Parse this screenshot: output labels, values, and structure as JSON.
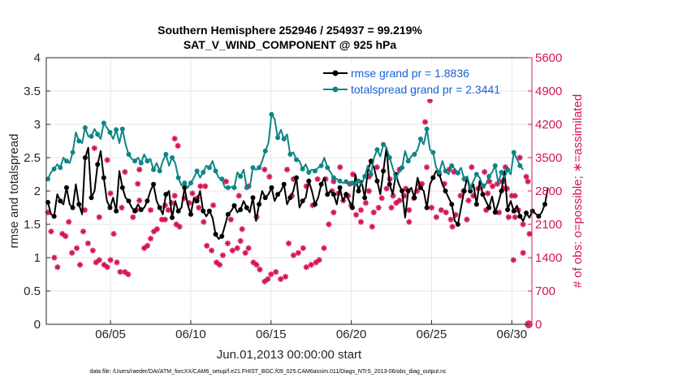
{
  "chart_data": {
    "type": "line",
    "title_line1": "Southern Hemisphere 252946 / 254937 = 99.219%",
    "title_line2": "SAT_V_WIND_COMPONENT @ 925 hPa",
    "xlabel": "Jun.01,2013 00:00:00 start",
    "ylabel_left": "rmse and totalspread",
    "ylabel_right": "# of obs: o=possible; ∗=assimilated",
    "x_range": [
      1.0,
      31.25
    ],
    "x_ticks": [
      5,
      10,
      15,
      20,
      25,
      30
    ],
    "x_tick_labels": [
      "06/05",
      "06/10",
      "06/15",
      "06/20",
      "06/25",
      "06/30"
    ],
    "ylim_left": [
      0,
      4
    ],
    "y_ticks_left": [
      "0",
      "0.5",
      "1",
      "1.5",
      "2",
      "2.5",
      "3",
      "3.5",
      "4"
    ],
    "ylim_right": [
      0,
      5600
    ],
    "y_ticks_right": [
      "0",
      "700",
      "1400",
      "2100",
      "2800",
      "3500",
      "4200",
      "4900",
      "5600"
    ],
    "grid": true,
    "legend_position": "top-right",
    "series": [
      {
        "name": "rmse grand pr = 1.8836",
        "color": "#000000",
        "axis": "left",
        "marker": "circle",
        "values": [
          1.83,
          1.65,
          1.62,
          1.95,
          1.85,
          1.8,
          2.05,
          1.8,
          1.75,
          2.1,
          1.8,
          1.65,
          2.5,
          2.65,
          1.9,
          2.0,
          2.4,
          2.6,
          2.2,
          1.85,
          1.75,
          1.9,
          1.7,
          2.3,
          2.05,
          1.9,
          1.85,
          1.75,
          1.7,
          1.8,
          1.72,
          1.75,
          1.85,
          2.0,
          2.1,
          1.85,
          1.75,
          1.65,
          1.95,
          2.0,
          1.6,
          1.85,
          1.7,
          1.75,
          2.05,
          1.8,
          1.65,
          1.9,
          1.85,
          2.0,
          1.7,
          1.62,
          1.7,
          1.6,
          1.35,
          1.28,
          1.32,
          1.48,
          1.65,
          1.7,
          1.78,
          1.68,
          1.72,
          1.85,
          1.75,
          1.68,
          1.9,
          1.55,
          1.8,
          2.0,
          1.9,
          1.95,
          2.05,
          1.85,
          1.95,
          2.0,
          2.1,
          1.8,
          1.9,
          2.0,
          2.2,
          1.75,
          1.85,
          1.9,
          2.15,
          2.0,
          1.8,
          1.9,
          2.1,
          2.2,
          1.95,
          2.0,
          1.95,
          1.8,
          2.05,
          1.85,
          1.95,
          1.85,
          1.75,
          2.25,
          2.0,
          2.15,
          1.9,
          2.3,
          2.45,
          2.35,
          2.15,
          1.95,
          2.3,
          2.65,
          2.1,
          1.95,
          2.25,
          2.1,
          2.0,
          1.6,
          2.0,
          2.05,
          1.9,
          2.2,
          2.05,
          2.0,
          1.75,
          2.1,
          2.2,
          2.3,
          2.25,
          2.1,
          2.0,
          1.9,
          1.8,
          1.55,
          1.5,
          1.75,
          2.0,
          2.2,
          2.0,
          2.1,
          1.8,
          2.15,
          1.95,
          1.85,
          1.75,
          1.92,
          1.68,
          1.82,
          2.0,
          2.3,
          1.72,
          1.85,
          1.7,
          1.78,
          1.62,
          1.55,
          1.67,
          1.6,
          1.7,
          1.66,
          1.62,
          1.68,
          1.8,
          2.05
        ],
        "markers_every": 2
      },
      {
        "name": "totalspread grand pr = 2.3441",
        "color": "#0e8585",
        "axis": "left",
        "marker": "circle",
        "values": [
          2.18,
          2.28,
          2.33,
          2.4,
          2.35,
          2.5,
          2.45,
          2.42,
          2.58,
          2.88,
          2.75,
          2.72,
          2.95,
          2.82,
          2.82,
          2.93,
          2.85,
          2.78,
          3.02,
          2.95,
          2.88,
          2.78,
          2.92,
          2.72,
          2.93,
          2.7,
          2.55,
          2.48,
          2.45,
          2.5,
          2.42,
          2.55,
          2.45,
          2.48,
          2.32,
          2.42,
          2.3,
          2.45,
          2.55,
          2.38,
          2.5,
          2.42,
          2.2,
          2.08,
          2.12,
          2.05,
          2.12,
          2.2,
          2.3,
          2.2,
          2.28,
          2.38,
          2.35,
          2.45,
          2.3,
          2.2,
          2.18,
          2.05,
          2.05,
          2.06,
          2.05,
          2.28,
          2.22,
          2.32,
          2.05,
          2.05,
          2.35,
          2.32,
          2.35,
          2.45,
          2.6,
          2.72,
          3.15,
          3.08,
          2.8,
          2.92,
          2.78,
          2.85,
          2.55,
          2.58,
          2.47,
          2.45,
          2.33,
          2.4,
          2.28,
          2.32,
          2.3,
          2.35,
          2.38,
          2.5,
          2.35,
          2.28,
          2.2,
          2.18,
          2.15,
          2.12,
          2.14,
          2.1,
          2.12,
          2.08,
          2.15,
          2.1,
          2.22,
          2.38,
          2.25,
          2.5,
          2.62,
          2.52,
          2.7,
          2.65,
          2.5,
          2.35,
          2.2,
          2.28,
          2.35,
          2.6,
          2.45,
          2.52,
          2.55,
          2.62,
          2.78,
          2.7,
          2.93,
          2.62,
          2.58,
          2.35,
          2.28,
          2.45,
          2.3,
          2.25,
          2.38,
          2.33,
          2.27,
          2.35,
          2.18,
          2.22,
          2.05,
          2.15,
          2.25,
          2.2,
          2.08,
          2.1,
          2.22,
          2.28,
          2.38,
          2.12,
          2.28,
          2.2,
          2.32,
          2.25,
          2.58,
          2.48,
          2.38,
          2.32
        ],
        "markers_every": 2
      }
    ],
    "scatter_series": [
      {
        "name": "assimilated",
        "color": "#d4145a",
        "axis": "right",
        "marker": "asterisk",
        "points": [
          [
            1.1,
            2350
          ],
          [
            1.3,
            1950
          ],
          [
            1.5,
            1400
          ],
          [
            1.7,
            1200
          ],
          [
            2.0,
            1900
          ],
          [
            2.2,
            1850
          ],
          [
            2.4,
            2150
          ],
          [
            2.6,
            1500
          ],
          [
            2.9,
            1600
          ],
          [
            3.1,
            1250
          ],
          [
            3.4,
            2400
          ],
          [
            3.6,
            1700
          ],
          [
            3.9,
            1550
          ],
          [
            4.1,
            1300
          ],
          [
            4.3,
            1350
          ],
          [
            4.6,
            1250
          ],
          [
            4.8,
            1200
          ],
          [
            5.0,
            1350
          ],
          [
            5.2,
            1900
          ],
          [
            5.4,
            1300
          ],
          [
            5.6,
            1100
          ],
          [
            5.9,
            1100
          ],
          [
            6.1,
            1050
          ],
          [
            5.7,
            2450
          ],
          [
            6.4,
            2250
          ],
          [
            6.6,
            2400
          ],
          [
            6.8,
            2600
          ],
          [
            7.1,
            1600
          ],
          [
            7.3,
            1650
          ],
          [
            7.5,
            1800
          ],
          [
            7.7,
            1950
          ],
          [
            7.9,
            2000
          ],
          [
            8.2,
            2200
          ],
          [
            8.4,
            2500
          ],
          [
            8.6,
            2400
          ],
          [
            8.8,
            2550
          ],
          [
            9.1,
            2100
          ],
          [
            9.3,
            2050
          ],
          [
            9.6,
            2650
          ],
          [
            9.9,
            2550
          ],
          [
            10.1,
            2750
          ],
          [
            10.3,
            2600
          ],
          [
            10.5,
            2450
          ],
          [
            10.8,
            2150
          ],
          [
            11.0,
            1650
          ],
          [
            11.3,
            1550
          ],
          [
            11.6,
            1300
          ],
          [
            11.8,
            1250
          ],
          [
            12.0,
            1450
          ],
          [
            12.3,
            1700
          ],
          [
            12.6,
            1550
          ],
          [
            12.9,
            1600
          ],
          [
            13.1,
            1750
          ],
          [
            13.4,
            1500
          ],
          [
            13.6,
            1600
          ],
          [
            13.9,
            1300
          ],
          [
            14.1,
            1250
          ],
          [
            14.3,
            1150
          ],
          [
            14.6,
            900
          ],
          [
            14.8,
            950
          ],
          [
            15.0,
            1050
          ],
          [
            15.3,
            1100
          ],
          [
            15.6,
            950
          ],
          [
            15.9,
            1000
          ],
          [
            16.1,
            1700
          ],
          [
            16.4,
            1450
          ],
          [
            16.7,
            1500
          ],
          [
            17.0,
            1600
          ],
          [
            17.2,
            1200
          ],
          [
            17.5,
            1250
          ],
          [
            17.8,
            1300
          ],
          [
            18.0,
            1350
          ],
          [
            18.3,
            1600
          ],
          [
            18.6,
            2100
          ],
          [
            18.9,
            2350
          ],
          [
            19.2,
            2750
          ],
          [
            19.5,
            2600
          ],
          [
            19.8,
            2700
          ],
          [
            20.0,
            2500
          ],
          [
            20.3,
            2300
          ],
          [
            20.6,
            2400
          ],
          [
            20.9,
            2550
          ],
          [
            21.1,
            2800
          ],
          [
            21.4,
            2350
          ],
          [
            21.7,
            2450
          ],
          [
            21.9,
            2650
          ],
          [
            22.2,
            2850
          ],
          [
            22.5,
            2450
          ],
          [
            22.8,
            2550
          ],
          [
            23.0,
            2600
          ],
          [
            23.3,
            2700
          ],
          [
            23.6,
            2400
          ],
          [
            23.9,
            2650
          ],
          [
            24.1,
            2800
          ],
          [
            24.4,
            2950
          ],
          [
            24.7,
            3300
          ],
          [
            25.0,
            2450
          ],
          [
            25.3,
            2250
          ],
          [
            25.6,
            2400
          ],
          [
            25.9,
            2350
          ],
          [
            26.2,
            2200
          ],
          [
            26.5,
            2300
          ],
          [
            26.8,
            2700
          ],
          [
            27.0,
            2800
          ],
          [
            27.3,
            2600
          ],
          [
            27.6,
            2700
          ],
          [
            27.9,
            2850
          ],
          [
            28.2,
            2900
          ],
          [
            28.5,
            2750
          ],
          [
            28.8,
            2900
          ],
          [
            29.1,
            2950
          ],
          [
            29.4,
            3000
          ],
          [
            29.7,
            2850
          ],
          [
            30.0,
            2700
          ],
          [
            30.2,
            2250
          ],
          [
            30.4,
            2400
          ]
        ],
        "extra_points": [
          [
            3.3,
            1950
          ],
          [
            4.3,
            2250
          ],
          [
            5.0,
            2750
          ],
          [
            6.7,
            2950
          ],
          [
            7.5,
            2400
          ],
          [
            9.0,
            2700
          ],
          [
            10.6,
            2900
          ],
          [
            11.4,
            2500
          ],
          [
            12.5,
            2200
          ],
          [
            13.2,
            2000
          ],
          [
            14.1,
            2250
          ],
          [
            16.3,
            2700
          ],
          [
            17.6,
            2500
          ],
          [
            18.8,
            2800
          ],
          [
            20.6,
            2150
          ],
          [
            21.3,
            2050
          ],
          [
            22.6,
            2700
          ],
          [
            23.6,
            2150
          ],
          [
            26.3,
            2050
          ],
          [
            27.2,
            2200
          ],
          [
            28.4,
            2400
          ],
          [
            29.2,
            2350
          ],
          [
            29.8,
            2250
          ],
          [
            30.7,
            1500
          ],
          [
            31.1,
            1900
          ]
        ]
      },
      {
        "name": "assimilated-high",
        "color": "#d4145a",
        "axis": "right",
        "marker": "asterisk",
        "points": [
          [
            4.0,
            3700
          ],
          [
            4.8,
            3450
          ],
          [
            5.9,
            3200
          ],
          [
            6.8,
            3250
          ],
          [
            8.4,
            2200
          ],
          [
            9.0,
            3900
          ],
          [
            9.2,
            3750
          ],
          [
            10.4,
            2650
          ],
          [
            13.6,
            2900
          ],
          [
            14.9,
            3100
          ],
          [
            16.4,
            3050
          ],
          [
            17.9,
            3050
          ],
          [
            18.9,
            3000
          ],
          [
            19.3,
            3300
          ],
          [
            20.1,
            3150
          ],
          [
            21.6,
            3300
          ],
          [
            23.0,
            3250
          ],
          [
            24.6,
            4250
          ],
          [
            24.9,
            4700
          ],
          [
            26.1,
            3250
          ],
          [
            26.4,
            3200
          ],
          [
            27.5,
            3300
          ],
          [
            28.3,
            3200
          ],
          [
            29.6,
            3300
          ],
          [
            30.2,
            2700
          ],
          [
            30.5,
            3500
          ],
          [
            30.9,
            3100
          ],
          [
            31.0,
            3000
          ],
          [
            30.1,
            1350
          ],
          [
            30.7,
            2100
          ],
          [
            10.9,
            2900
          ],
          [
            12.2,
            3000
          ],
          [
            13.0,
            2700
          ],
          [
            14.6,
            3250
          ],
          [
            16.0,
            3250
          ],
          [
            17.2,
            2900
          ],
          [
            18.4,
            3050
          ],
          [
            19.9,
            2950
          ],
          [
            21.1,
            3100
          ],
          [
            22.4,
            3050
          ],
          [
            23.4,
            2850
          ],
          [
            24.2,
            2950
          ],
          [
            25.8,
            2950
          ],
          [
            27.1,
            3050
          ],
          [
            28.6,
            3000
          ],
          [
            29.5,
            2850
          ]
        ]
      },
      {
        "name": "possible-zero",
        "color": "#d4145a",
        "axis": "right",
        "marker": "circle-open",
        "points": [
          [
            31.05,
            0
          ]
        ]
      }
    ],
    "footnote": "data file: /Users/raeder/DAI/ATM_forcXX/CAM6_setup/f.e21.FHIST_BGC.f09_025.CAM6assim.011/Diags_NTrS_2013-06/obs_diag_output.nc"
  },
  "colors": {
    "rmse": "#000000",
    "spread": "#0e8585",
    "obs": "#d4145a",
    "legend_text": "#1a5fd8",
    "grid": "#e6e6e6"
  }
}
